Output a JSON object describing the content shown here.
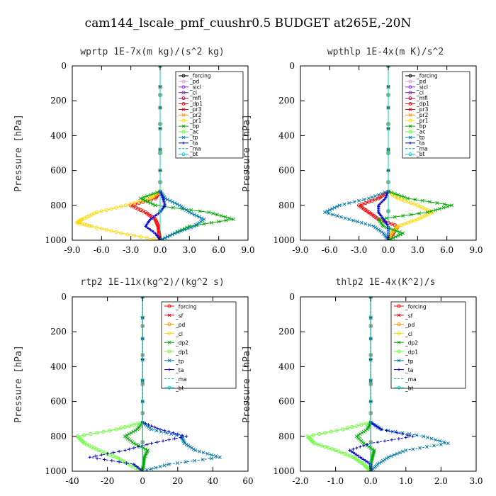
{
  "figure_title": "cam144_lscale_pmf_cuushr0.5  BUDGET at265E,-20N",
  "chart_data": [
    {
      "id": "wprtp",
      "type": "line",
      "title": "wprtp   1E-7x(m kg)/(s^2 kg)",
      "ylabel": "Pressure [hPa]",
      "xlim": [
        -9,
        9
      ],
      "ylim": [
        1000,
        0
      ],
      "xticks": [
        "-9.0",
        "-6.0",
        "-3.0",
        "0.0",
        "3.0",
        "6.0",
        "9.0"
      ],
      "xtick_values": [
        -9,
        -6,
        -3,
        0,
        3,
        6,
        9
      ],
      "yticks": [
        "0",
        "200",
        "400",
        "600",
        "800",
        "1000"
      ],
      "ytick_values": [
        0,
        200,
        400,
        600,
        800,
        1000
      ],
      "legend_position": "top-right",
      "series": [
        {
          "name": "_forcing",
          "color": "#000000",
          "marker": "o",
          "p": [
            0,
            1000
          ],
          "x": [
            0,
            0
          ]
        },
        {
          "name": "_pd",
          "color": "#c9a0dc",
          "marker": "o",
          "p": [
            0,
            1000
          ],
          "x": [
            0,
            0
          ]
        },
        {
          "name": "_sicl",
          "color": "#8a2be2",
          "marker": "o",
          "p": [
            0,
            1000
          ],
          "x": [
            0,
            0
          ]
        },
        {
          "name": "_cl",
          "color": "#7b1fa2",
          "marker": "o",
          "p": [
            0,
            1000
          ],
          "x": [
            0,
            0
          ]
        },
        {
          "name": "_mfl",
          "color": "#b0004a",
          "marker": "o",
          "p": [
            0,
            1000
          ],
          "x": [
            0,
            0
          ]
        },
        {
          "name": "_dp1",
          "color": "#ff0000",
          "marker": "o",
          "p": [
            0,
            720,
            760,
            800,
            840,
            880,
            920,
            960,
            1000
          ],
          "x": [
            0,
            0,
            -0.5,
            -3.0,
            -1.5,
            -0.5,
            -0.2,
            -0.1,
            0
          ]
        },
        {
          "name": "_pr3",
          "color": "#d40000",
          "marker": "x",
          "p": [
            0,
            1000
          ],
          "x": [
            0,
            0
          ]
        },
        {
          "name": "_pr2",
          "color": "#ff8c00",
          "marker": "x",
          "p": [
            0,
            1000
          ],
          "x": [
            0,
            0
          ]
        },
        {
          "name": "_pr1",
          "color": "#ffd700",
          "marker": "o",
          "p": [
            0,
            720,
            760,
            800,
            840,
            880,
            900,
            920,
            960,
            1000
          ],
          "x": [
            0,
            0,
            -1.0,
            -3.5,
            -6.5,
            -8.0,
            -8.5,
            -7.0,
            -4.0,
            0
          ]
        },
        {
          "name": "_bp",
          "color": "#00aa00",
          "marker": "x",
          "p": [
            0,
            720,
            760,
            800,
            840,
            880,
            920,
            960,
            1000
          ],
          "x": [
            0,
            0,
            -2.0,
            -0.5,
            5.0,
            7.5,
            3.0,
            1.5,
            0
          ]
        },
        {
          "name": "_ac",
          "color": "#66ff33",
          "marker": "o",
          "p": [
            0,
            1000
          ],
          "x": [
            0,
            0
          ]
        },
        {
          "name": "_tp",
          "color": "#0077aa",
          "marker": "x",
          "p": [
            0,
            720,
            760,
            800,
            840,
            880,
            920,
            960,
            1000
          ],
          "x": [
            0,
            0,
            0.5,
            2.0,
            3.0,
            4.5,
            3.5,
            1.5,
            0
          ]
        },
        {
          "name": "_ta",
          "color": "#0000cc",
          "marker": "+",
          "p": [
            0,
            720,
            760,
            800,
            840,
            880,
            920,
            960,
            1000
          ],
          "x": [
            0,
            0,
            0.3,
            0.5,
            0.0,
            -1.0,
            -1.5,
            -0.5,
            0
          ]
        },
        {
          "name": "_ma",
          "color": "#00aacc",
          "marker": "-",
          "p": [
            0,
            1000
          ],
          "x": [
            0,
            0
          ]
        },
        {
          "name": "_bt",
          "color": "#00cccc",
          "marker": "o",
          "p": [
            0,
            1000
          ],
          "x": [
            0,
            0
          ]
        }
      ]
    },
    {
      "id": "wpthlp",
      "type": "line",
      "title": "wpthlp   1E-4x(m K)/s^2",
      "ylabel": "Pressure [hPa]",
      "xlim": [
        -9,
        9
      ],
      "ylim": [
        1000,
        0
      ],
      "xticks": [
        "-9.0",
        "-6.0",
        "-3.0",
        "0.0",
        "3.0",
        "6.0",
        "9.0"
      ],
      "xtick_values": [
        -9,
        -6,
        -3,
        0,
        3,
        6,
        9
      ],
      "yticks": [
        "0",
        "200",
        "400",
        "600",
        "800",
        "1000"
      ],
      "ytick_values": [
        0,
        200,
        400,
        600,
        800,
        1000
      ],
      "legend_position": "top-right",
      "series": [
        {
          "name": "_forcing",
          "color": "#000000",
          "marker": "o",
          "p": [
            0,
            1000
          ],
          "x": [
            0,
            0
          ]
        },
        {
          "name": "_pd",
          "color": "#c9a0dc",
          "marker": "o",
          "p": [
            0,
            1000
          ],
          "x": [
            0,
            0
          ]
        },
        {
          "name": "_sicl",
          "color": "#8a2be2",
          "marker": "o",
          "p": [
            0,
            1000
          ],
          "x": [
            0,
            0
          ]
        },
        {
          "name": "_cl",
          "color": "#7b1fa2",
          "marker": "o",
          "p": [
            0,
            1000
          ],
          "x": [
            0,
            0
          ]
        },
        {
          "name": "_mfl",
          "color": "#b0004a",
          "marker": "o",
          "p": [
            0,
            1000
          ],
          "x": [
            0,
            0
          ]
        },
        {
          "name": "_dp1",
          "color": "#ff0000",
          "marker": "o",
          "p": [
            0,
            720,
            760,
            800,
            840,
            880,
            920,
            960,
            1000
          ],
          "x": [
            0,
            0,
            -1.0,
            -3.0,
            -2.0,
            -1.0,
            1.0,
            0.5,
            0
          ]
        },
        {
          "name": "_pr3",
          "color": "#d40000",
          "marker": "x",
          "p": [
            0,
            1000
          ],
          "x": [
            0,
            0
          ]
        },
        {
          "name": "_pr2",
          "color": "#ff8c00",
          "marker": "x",
          "p": [
            0,
            1000
          ],
          "x": [
            0,
            0
          ]
        },
        {
          "name": "_pr1",
          "color": "#ffd700",
          "marker": "o",
          "p": [
            0,
            720,
            760,
            800,
            840,
            880,
            920,
            960,
            1000
          ],
          "x": [
            0,
            0,
            1.0,
            3.0,
            4.5,
            3.0,
            1.0,
            0.3,
            0
          ]
        },
        {
          "name": "_bp",
          "color": "#00aa00",
          "marker": "x",
          "p": [
            0,
            720,
            760,
            800,
            840,
            880,
            920,
            960,
            1000
          ],
          "x": [
            0,
            0,
            2.0,
            6.5,
            4.0,
            -1.0,
            -0.5,
            1.5,
            0
          ]
        },
        {
          "name": "_ac",
          "color": "#66ff33",
          "marker": "o",
          "p": [
            0,
            1000
          ],
          "x": [
            0,
            0
          ]
        },
        {
          "name": "_tp",
          "color": "#0077aa",
          "marker": "x",
          "p": [
            0,
            720,
            760,
            800,
            840,
            880,
            920,
            960,
            1000
          ],
          "x": [
            0,
            0,
            -2.0,
            -5.0,
            -6.5,
            -4.0,
            -1.5,
            -0.5,
            0
          ]
        },
        {
          "name": "_ta",
          "color": "#0000cc",
          "marker": "+",
          "p": [
            0,
            720,
            760,
            800,
            840,
            880,
            920,
            960,
            1000
          ],
          "x": [
            0,
            0,
            -0.3,
            -1.0,
            -1.0,
            -0.5,
            0.0,
            0.0,
            0
          ]
        },
        {
          "name": "_ma",
          "color": "#00aacc",
          "marker": "-",
          "p": [
            0,
            1000
          ],
          "x": [
            0,
            0
          ]
        },
        {
          "name": "_bt",
          "color": "#00cccc",
          "marker": "o",
          "p": [
            0,
            1000
          ],
          "x": [
            0,
            0
          ]
        }
      ]
    },
    {
      "id": "rtp2",
      "type": "line",
      "title": "rtp2   1E-11x(kg^2)/(kg^2 s)",
      "ylabel": "Pressure [hPa]",
      "xlim": [
        -40,
        60
      ],
      "ylim": [
        1000,
        0
      ],
      "xticks": [
        "-40",
        "-20",
        "0",
        "20",
        "40",
        "60"
      ],
      "xtick_values": [
        -40,
        -20,
        0,
        20,
        40,
        60
      ],
      "yticks": [
        "0",
        "200",
        "400",
        "600",
        "800",
        "1000"
      ],
      "ytick_values": [
        0,
        200,
        400,
        600,
        800,
        1000
      ],
      "legend_position": "top-right",
      "series": [
        {
          "name": "_forcing",
          "color": "#ff0000",
          "marker": "o",
          "p": [
            0,
            1000
          ],
          "x": [
            0,
            0
          ]
        },
        {
          "name": "_sf",
          "color": "#d40000",
          "marker": "x",
          "p": [
            0,
            1000
          ],
          "x": [
            0,
            0
          ]
        },
        {
          "name": "_pd",
          "color": "#ff8c00",
          "marker": "o",
          "p": [
            0,
            1000
          ],
          "x": [
            0,
            0
          ]
        },
        {
          "name": "_cl",
          "color": "#ffd700",
          "marker": "o",
          "p": [
            0,
            1000
          ],
          "x": [
            0,
            0
          ]
        },
        {
          "name": "_dp2",
          "color": "#00aa00",
          "marker": "x",
          "p": [
            0,
            720,
            760,
            800,
            840,
            880,
            920,
            960,
            1000
          ],
          "x": [
            0,
            0,
            -3.0,
            -10.0,
            -5.0,
            3.0,
            1.0,
            0.5,
            0
          ]
        },
        {
          "name": "_dp1",
          "color": "#66ff33",
          "marker": "o",
          "p": [
            0,
            720,
            760,
            800,
            840,
            880,
            920,
            960,
            1000
          ],
          "x": [
            0,
            0,
            -15.0,
            -37.0,
            -33.0,
            -25.0,
            -15.0,
            -8.0,
            0
          ]
        },
        {
          "name": "_tp",
          "color": "#0077aa",
          "marker": "x",
          "p": [
            0,
            720,
            760,
            800,
            840,
            880,
            920,
            960,
            1000
          ],
          "x": [
            0,
            0,
            5.0,
            22.0,
            24.0,
            30.0,
            44.0,
            15.0,
            0
          ]
        },
        {
          "name": "_ta",
          "color": "#0000cc",
          "marker": "+",
          "p": [
            0,
            720,
            760,
            800,
            840,
            880,
            920,
            960,
            1000
          ],
          "x": [
            0,
            0,
            10.0,
            25.0,
            5.0,
            -10.0,
            -30.0,
            -5.0,
            0
          ]
        },
        {
          "name": "_ma",
          "color": "#00aacc",
          "marker": "-",
          "p": [
            0,
            1000
          ],
          "x": [
            0,
            0
          ]
        },
        {
          "name": "_bt",
          "color": "#00cccc",
          "marker": "o",
          "p": [
            0,
            1000
          ],
          "x": [
            0,
            0
          ]
        }
      ]
    },
    {
      "id": "thlp2",
      "type": "line",
      "title": "thlp2   1E-4x(K^2)/s",
      "ylabel": "Pressure [hPa]",
      "xlim": [
        -2,
        3
      ],
      "ylim": [
        1000,
        0
      ],
      "xticks": [
        "-2.0",
        "-1.0",
        "0.0",
        "1.0",
        "2.0",
        "3.0"
      ],
      "xtick_values": [
        -2,
        -1,
        0,
        1,
        2,
        3
      ],
      "yticks": [
        "0",
        "200",
        "400",
        "600",
        "800",
        "1000"
      ],
      "ytick_values": [
        0,
        200,
        400,
        600,
        800,
        1000
      ],
      "legend_position": "top-right",
      "series": [
        {
          "name": "_forcing",
          "color": "#ff0000",
          "marker": "o",
          "p": [
            0,
            1000
          ],
          "x": [
            0,
            0
          ]
        },
        {
          "name": "_sf",
          "color": "#d40000",
          "marker": "x",
          "p": [
            0,
            1000
          ],
          "x": [
            0,
            0
          ]
        },
        {
          "name": "_pd",
          "color": "#ff8c00",
          "marker": "o",
          "p": [
            0,
            1000
          ],
          "x": [
            0,
            0
          ]
        },
        {
          "name": "_cl",
          "color": "#ffd700",
          "marker": "o",
          "p": [
            0,
            1000
          ],
          "x": [
            0,
            0
          ]
        },
        {
          "name": "_dp2",
          "color": "#00aa00",
          "marker": "x",
          "p": [
            0,
            720,
            760,
            800,
            840,
            880,
            920,
            960,
            1000
          ],
          "x": [
            0,
            0,
            -0.1,
            -0.4,
            -0.2,
            0.1,
            0.05,
            0.0,
            0
          ]
        },
        {
          "name": "_dp1",
          "color": "#66ff33",
          "marker": "o",
          "p": [
            0,
            720,
            760,
            800,
            840,
            880,
            920,
            960,
            1000
          ],
          "x": [
            0,
            0,
            -0.8,
            -1.8,
            -1.6,
            -1.0,
            -0.5,
            -0.2,
            0
          ]
        },
        {
          "name": "_tp",
          "color": "#0077aa",
          "marker": "x",
          "p": [
            0,
            720,
            760,
            800,
            840,
            880,
            920,
            960,
            1000
          ],
          "x": [
            0,
            0,
            0.3,
            1.5,
            2.2,
            1.0,
            0.5,
            0.2,
            0
          ]
        },
        {
          "name": "_ta",
          "color": "#0000cc",
          "marker": "+",
          "p": [
            0,
            720,
            760,
            800,
            840,
            880,
            920,
            960,
            1000
          ],
          "x": [
            0,
            0,
            0.3,
            1.2,
            0.0,
            -0.6,
            -0.3,
            0.0,
            0
          ]
        },
        {
          "name": "_ma",
          "color": "#00aacc",
          "marker": "-",
          "p": [
            0,
            1000
          ],
          "x": [
            0,
            0
          ]
        },
        {
          "name": "_bt",
          "color": "#00cccc",
          "marker": "o",
          "p": [
            0,
            1000
          ],
          "x": [
            0,
            0
          ]
        }
      ]
    }
  ]
}
